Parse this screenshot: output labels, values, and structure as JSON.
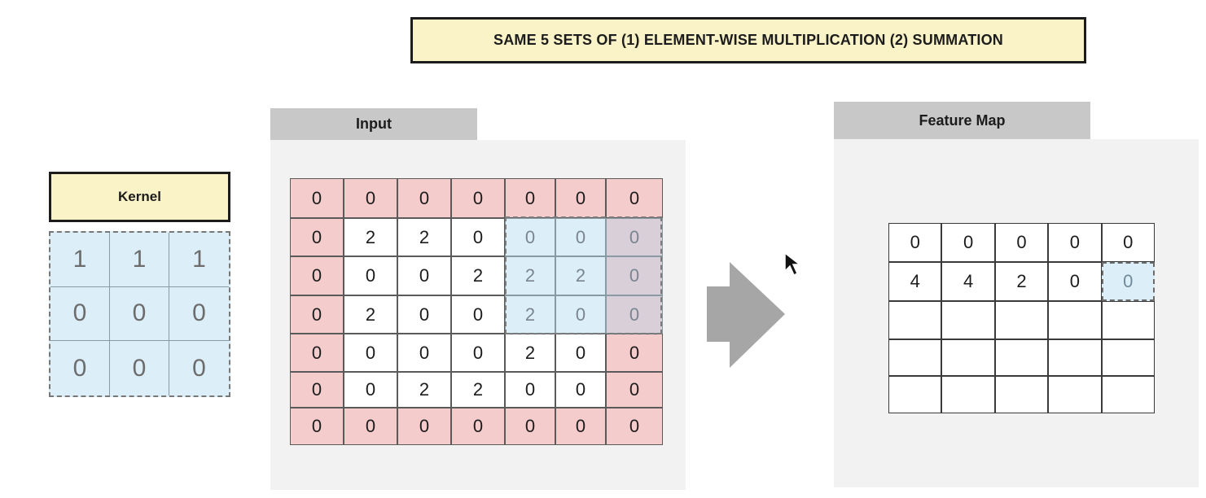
{
  "title": "SAME 5 SETS OF (1) ELEMENT-WISE MULTIPLICATION (2) SUMMATION",
  "kernel": {
    "label": "Kernel",
    "values": [
      "1",
      "1",
      "1",
      "0",
      "0",
      "0",
      "0",
      "0",
      "0"
    ]
  },
  "input": {
    "label": "Input",
    "rows": [
      [
        "0",
        "0",
        "0",
        "0",
        "0",
        "0",
        "0"
      ],
      [
        "0",
        "2",
        "2",
        "0",
        "0",
        "0",
        "0"
      ],
      [
        "0",
        "0",
        "0",
        "2",
        "2",
        "2",
        "0"
      ],
      [
        "0",
        "2",
        "0",
        "0",
        "2",
        "0",
        "0"
      ],
      [
        "0",
        "0",
        "0",
        "0",
        "2",
        "0",
        "0"
      ],
      [
        "0",
        "0",
        "2",
        "2",
        "0",
        "0",
        "0"
      ],
      [
        "0",
        "0",
        "0",
        "0",
        "0",
        "0",
        "0"
      ]
    ]
  },
  "feature_map": {
    "label": "Feature Map",
    "rows": [
      [
        "0",
        "0",
        "0",
        "0",
        "0"
      ],
      [
        "4",
        "4",
        "2",
        "0",
        "0"
      ],
      [
        "",
        "",
        "",
        "",
        ""
      ],
      [
        "",
        "",
        "",
        "",
        ""
      ],
      [
        "",
        "",
        "",
        "",
        ""
      ]
    ]
  },
  "colors": {
    "padding": "#f4cccc",
    "highlight": "#dceef7",
    "title_bg": "#fbf3c8",
    "panel_bg": "#f2f2f2",
    "panel_label": "#c8c8c8",
    "arrow": "#a6a6a6"
  }
}
